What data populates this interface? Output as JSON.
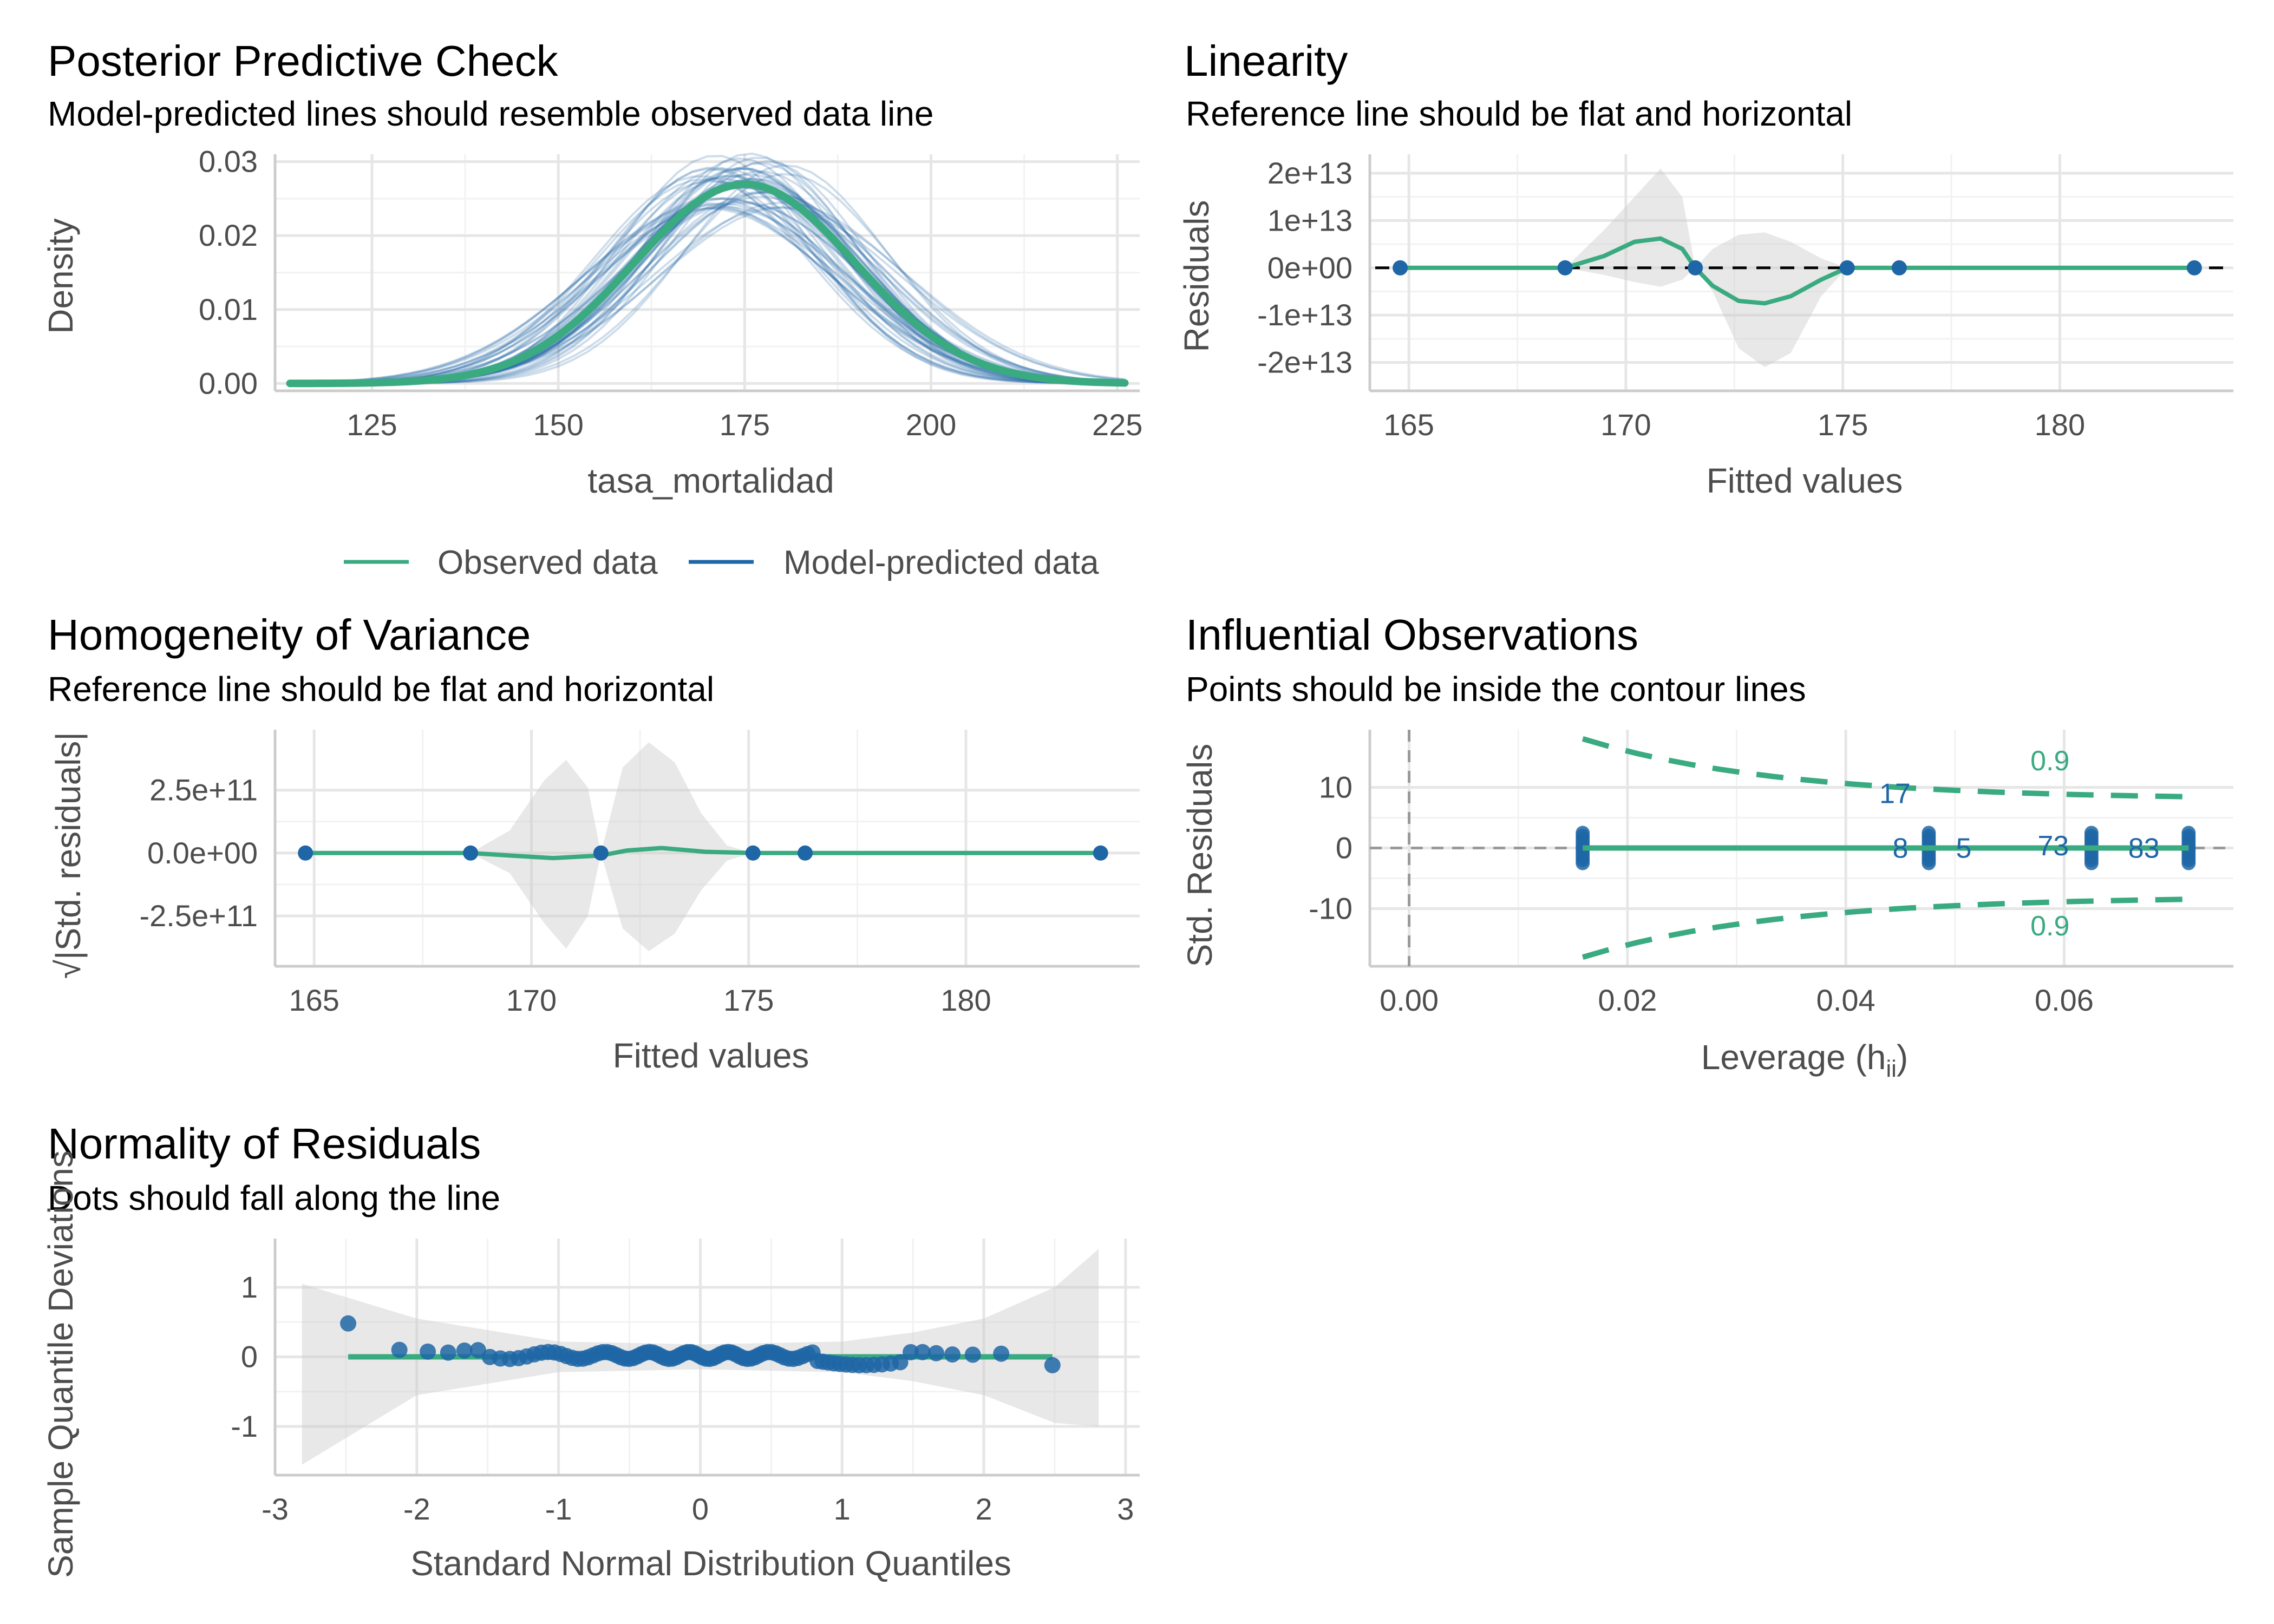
{
  "colors": {
    "observed": "#3aaa81",
    "predicted": "#1f66a6",
    "point": "#1f66a6",
    "ribbon": "#cccccc",
    "grid": "#e6e6e6",
    "axis": "#cccccc",
    "ref": "#000000"
  },
  "chart_data": [
    {
      "id": "ppc",
      "type": "line",
      "title": "Posterior Predictive Check",
      "subtitle": "Model-predicted lines should resemble observed data line",
      "xlabel": "tasa_mortalidad",
      "ylabel": "Density",
      "xlim": [
        112,
        228
      ],
      "ylim": [
        -0.001,
        0.031
      ],
      "xticks": [
        125,
        150,
        175,
        200,
        225
      ],
      "yticks": [
        0,
        0.01,
        0.02,
        0.03
      ],
      "yticklabels": [
        "0.00",
        "0.01",
        "0.02",
        "0.03"
      ],
      "observed": {
        "mean": 175,
        "sd": 14.8,
        "x": [
          114,
          226
        ]
      },
      "predicted_draws": 50,
      "legend": {
        "position": "bottom",
        "items": [
          {
            "label": "Observed data"
          },
          {
            "label": "Model-predicted data"
          }
        ]
      }
    },
    {
      "id": "linearity",
      "type": "scatter",
      "title": "Linearity",
      "subtitle": "Reference line should be flat and horizontal",
      "xlabel": "Fitted values",
      "ylabel": "Residuals",
      "xlim": [
        164.1,
        184.0
      ],
      "ylim": [
        -26000000000000.0,
        24000000000000.0
      ],
      "xticks": [
        165,
        170,
        175,
        180
      ],
      "yticks": [
        -20000000000000.0,
        -10000000000000.0,
        0,
        10000000000000.0,
        20000000000000.0
      ],
      "yticklabels": [
        "-2e+13",
        "-1e+13",
        "0e+00",
        "1e+13",
        "2e+13"
      ],
      "points_x": [
        164.8,
        168.6,
        171.6,
        175.1,
        176.3,
        183.1
      ],
      "points_y": [
        0,
        0,
        0,
        0,
        0,
        0
      ],
      "smooth": {
        "x": [
          164.8,
          166,
          167.5,
          168.6,
          169.5,
          170.2,
          170.8,
          171.3,
          171.6,
          172.0,
          172.6,
          173.2,
          173.8,
          174.5,
          175.1,
          176.3,
          180,
          183.1
        ],
        "y": [
          0,
          0,
          0,
          0,
          2500000000000.0,
          5500000000000.0,
          6200000000000.0,
          4000000000000.0,
          0,
          -3800000000000.0,
          -7000000000000.0,
          -7500000000000.0,
          -6000000000000.0,
          -2500000000000.0,
          0,
          0,
          0,
          0
        ]
      },
      "ribbon": {
        "x": [
          164.8,
          168.6,
          169.5,
          170.2,
          170.8,
          171.3,
          171.6,
          172.0,
          172.6,
          173.2,
          173.8,
          174.5,
          175.1,
          183.1
        ],
        "low": [
          0,
          0,
          -1500000000000.0,
          -3000000000000.0,
          -4000000000000.0,
          -2500000000000.0,
          0,
          -5000000000000.0,
          -17000000000000.0,
          -21000000000000.0,
          -18000000000000.0,
          -6000000000000.0,
          0,
          0
        ],
        "high": [
          0,
          0,
          8000000000000.0,
          15000000000000.0,
          21000000000000.0,
          15000000000000.0,
          0,
          4000000000000.0,
          7000000000000.0,
          7500000000000.0,
          5500000000000.0,
          2000000000000.0,
          0,
          0
        ]
      }
    },
    {
      "id": "homogeneity",
      "type": "scatter",
      "title": "Homogeneity of Variance",
      "subtitle": "Reference line should be flat and horizontal",
      "xlabel": "Fitted values",
      "ylabel": "√|Std. residuals|",
      "xlim": [
        164.1,
        184.0
      ],
      "ylim": [
        -450000000000.0,
        490000000000.0
      ],
      "xticks": [
        165,
        170,
        175,
        180
      ],
      "yticks": [
        -250000000000.0,
        0,
        250000000000.0
      ],
      "yticklabels": [
        "-2.5e+11",
        "0.0e+00",
        "2.5e+11"
      ],
      "points_x": [
        164.8,
        168.6,
        171.6,
        175.1,
        176.3,
        183.1
      ],
      "points_y": [
        0,
        0,
        0,
        0,
        0,
        0
      ],
      "smooth": {
        "x": [
          164.8,
          168.6,
          169.5,
          170.5,
          171.6,
          172.2,
          173.0,
          174.0,
          175.1,
          176.3,
          183.1
        ],
        "y": [
          0,
          0,
          -10000000000.0,
          -20000000000.0,
          -10000000000.0,
          10000000000.0,
          20000000000.0,
          5000000000.0,
          0,
          0,
          0
        ]
      },
      "ribbon": {
        "x": [
          164.8,
          168.6,
          169.5,
          170.3,
          170.8,
          171.3,
          171.6,
          172.1,
          172.7,
          173.3,
          173.9,
          174.5,
          175.1,
          183.1
        ],
        "low": [
          0,
          0,
          -80000000000.0,
          -280000000000.0,
          -380000000000.0,
          -250000000000.0,
          0,
          -300000000000.0,
          -390000000000.0,
          -320000000000.0,
          -150000000000.0,
          -30000000000.0,
          0,
          0
        ],
        "high": [
          0,
          0,
          90000000000.0,
          290000000000.0,
          370000000000.0,
          260000000000.0,
          0,
          340000000000.0,
          440000000000.0,
          360000000000.0,
          160000000000.0,
          30000000000.0,
          0,
          0
        ]
      }
    },
    {
      "id": "influential",
      "type": "scatter",
      "title": "Influential Observations",
      "subtitle": "Points should be inside the contour lines",
      "xlabel": "Leverage (h",
      "xlabel_sub": "ii",
      "xlabel_close": ")",
      "ylabel": "Std. Residuals",
      "xlim": [
        -0.0036,
        0.0755
      ],
      "ylim": [
        -19.5,
        19.5
      ],
      "xticks": [
        0,
        0.02,
        0.04,
        0.06
      ],
      "xticklabels": [
        "0.00",
        "0.02",
        "0.04",
        "0.06"
      ],
      "yticks": [
        -10,
        0,
        10
      ],
      "yticklabels": [
        "-10",
        "0",
        "10"
      ],
      "leverage_groups": [
        0.0159,
        0.0476,
        0.0625,
        0.0714
      ],
      "points_y": [
        -2.5,
        -2,
        -1.5,
        -1,
        -0.5,
        0,
        0.5,
        1,
        1.5,
        2,
        2.5
      ],
      "contour_x": [
        0.0159,
        0.0714
      ],
      "contour_label": "0.9",
      "labels": [
        {
          "text": "17",
          "x": 0.0445,
          "y": 9.0
        },
        {
          "text": "8",
          "x": 0.045,
          "y": 0
        },
        {
          "text": "5",
          "x": 0.0508,
          "y": 0
        },
        {
          "text": "73",
          "x": 0.059,
          "y": 0.4
        },
        {
          "text": "83",
          "x": 0.0673,
          "y": 0
        },
        {
          "text": "0.9",
          "x": 0.0587,
          "y": 14.4
        },
        {
          "text": "0.9",
          "x": 0.0587,
          "y": -12.8
        }
      ]
    },
    {
      "id": "qq",
      "type": "scatter",
      "title": "Normality of Residuals",
      "subtitle": "Dots should fall along the line",
      "xlabel": "Standard Normal Distribution Quantiles",
      "ylabel": "Sample Quantile Deviations",
      "xlim": [
        -3.0,
        3.1
      ],
      "ylim": [
        -1.7,
        1.7
      ],
      "xticks": [
        -3,
        -2,
        -1,
        0,
        1,
        2,
        3
      ],
      "yticks": [
        -1,
        0,
        1
      ],
      "n": 96,
      "reference_y": 0,
      "ribbon": {
        "x": [
          -2.81,
          -2.0,
          -1.0,
          0,
          1.0,
          1.5,
          2.0,
          2.5,
          2.81
        ],
        "low": [
          -1.55,
          -0.55,
          -0.22,
          -0.18,
          -0.22,
          -0.35,
          -0.55,
          -0.95,
          -1.0
        ],
        "high": [
          1.05,
          0.55,
          0.22,
          0.18,
          0.22,
          0.35,
          0.55,
          1.0,
          1.55
        ]
      }
    }
  ]
}
